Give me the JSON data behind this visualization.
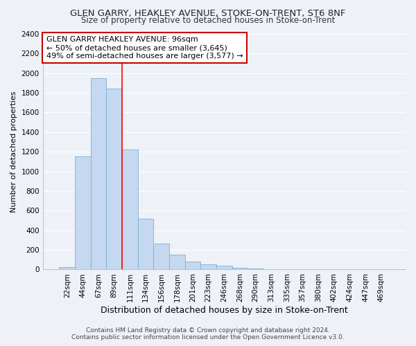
{
  "title": "GLEN GARRY, HEAKLEY AVENUE, STOKE-ON-TRENT, ST6 8NF",
  "subtitle": "Size of property relative to detached houses in Stoke-on-Trent",
  "xlabel": "Distribution of detached houses by size in Stoke-on-Trent",
  "ylabel": "Number of detached properties",
  "categories": [
    "22sqm",
    "44sqm",
    "67sqm",
    "89sqm",
    "111sqm",
    "134sqm",
    "156sqm",
    "178sqm",
    "201sqm",
    "223sqm",
    "246sqm",
    "268sqm",
    "290sqm",
    "313sqm",
    "335sqm",
    "357sqm",
    "380sqm",
    "402sqm",
    "424sqm",
    "447sqm",
    "469sqm"
  ],
  "values": [
    25,
    1150,
    1950,
    1840,
    1220,
    520,
    265,
    150,
    80,
    50,
    35,
    20,
    8,
    5,
    5,
    3,
    3,
    3,
    3,
    2,
    5
  ],
  "bar_color": "#c5d8f0",
  "bar_edgecolor": "#7aafd4",
  "ylim": [
    0,
    2400
  ],
  "yticks": [
    0,
    200,
    400,
    600,
    800,
    1000,
    1200,
    1400,
    1600,
    1800,
    2000,
    2200,
    2400
  ],
  "red_line_x": 3.5,
  "annotation_title": "GLEN GARRY HEAKLEY AVENUE: 96sqm",
  "annotation_line1": "← 50% of detached houses are smaller (3,645)",
  "annotation_line2": "49% of semi-detached houses are larger (3,577) →",
  "annotation_box_facecolor": "#ffffff",
  "annotation_box_edgecolor": "#cc0000",
  "footer_line1": "Contains HM Land Registry data © Crown copyright and database right 2024.",
  "footer_line2": "Contains public sector information licensed under the Open Government Licence v3.0.",
  "background_color": "#eef2f8",
  "grid_color": "#ffffff",
  "title_fontsize": 9.5,
  "subtitle_fontsize": 8.5,
  "xlabel_fontsize": 9,
  "ylabel_fontsize": 8,
  "tick_fontsize": 7.5,
  "annotation_fontsize": 8,
  "footer_fontsize": 6.5
}
